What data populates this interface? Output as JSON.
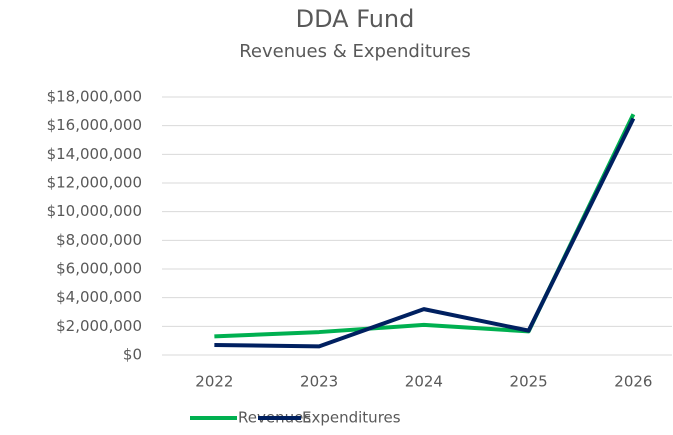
{
  "chart_data": {
    "type": "line",
    "title": "DDA Fund",
    "subtitle": "Revenues & Expenditures",
    "categories": [
      "2022",
      "2023",
      "2024",
      "2025",
      "2026"
    ],
    "series": [
      {
        "name": "Revenues",
        "color": "#00b050",
        "values": [
          1300000,
          1600000,
          2100000,
          1650000,
          16800000
        ]
      },
      {
        "name": "Expenditures",
        "color": "#002060",
        "values": [
          700000,
          600000,
          3200000,
          1700000,
          16500000
        ]
      }
    ],
    "ylim": [
      0,
      18000000
    ],
    "yticks": [
      {
        "value": 0,
        "label": "$0"
      },
      {
        "value": 2000000,
        "label": "$2,000,000"
      },
      {
        "value": 4000000,
        "label": "$4,000,000"
      },
      {
        "value": 6000000,
        "label": "$6,000,000"
      },
      {
        "value": 8000000,
        "label": "$8,000,000"
      },
      {
        "value": 10000000,
        "label": "$10,000,000"
      },
      {
        "value": 12000000,
        "label": "$12,000,000"
      },
      {
        "value": 14000000,
        "label": "$14,000,000"
      },
      {
        "value": 16000000,
        "label": "$16,000,000"
      },
      {
        "value": 18000000,
        "label": "$18,000,000"
      }
    ],
    "grid": true,
    "legend": "bottom"
  }
}
